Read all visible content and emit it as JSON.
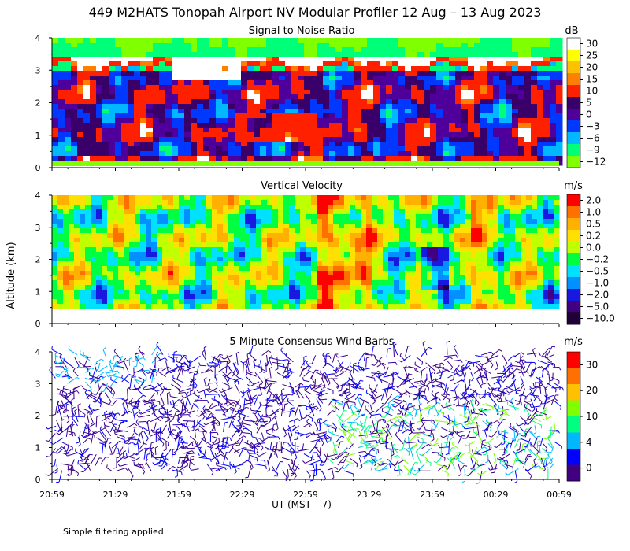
{
  "title": "449 M2HATS Tonopah Airport NV Modular Profiler 12 Aug – 13 Aug 2023",
  "ylabel": "Altitude (km)",
  "xlabel": "UT  (MST – 7)",
  "x_ticks": [
    "20:59",
    "21:29",
    "21:59",
    "22:29",
    "22:59",
    "23:29",
    "23:59",
    "00:29",
    "00:59"
  ],
  "y_ticks": [
    "0",
    "1",
    "2",
    "3",
    "4"
  ],
  "footnote": "Simple filtering applied",
  "chart_data": [
    {
      "type": "heatmap",
      "title": "Signal to Noise Ratio",
      "unit": "dB",
      "ylim": [
        0,
        4
      ],
      "colorbar": {
        "labels": [
          "30",
          "25",
          "20",
          "15",
          "10",
          "5",
          "0",
          "−3",
          "−6",
          "−9",
          "−12"
        ],
        "colors": [
          "#ffffff",
          "#ffff00",
          "#ffc000",
          "#ff8000",
          "#ff2000",
          "#380068",
          "#50009a",
          "#0038ff",
          "#00b8ff",
          "#00ff78",
          "#80ff00"
        ]
      },
      "regions": [
        {
          "time": "22:29–22:59",
          "altitude_km": "0.9–1.8",
          "approx_db": 12
        },
        {
          "time": "21:59",
          "altitude_km": "1.4",
          "approx_db": 12
        },
        {
          "time": "21:29–22:29",
          "altitude_km": "2.8–3.5",
          "approx_db": 30
        }
      ]
    },
    {
      "type": "heatmap",
      "title": "Vertical Velocity",
      "unit": "m/s",
      "ylim": [
        0,
        4
      ],
      "colorbar": {
        "labels": [
          "2.0",
          "1.0",
          "0.5",
          "0.2",
          "0.0",
          "−0.2",
          "−0.5",
          "−1.0",
          "−2.0",
          "−5.0",
          "−10.0"
        ],
        "colors": [
          "#ff0000",
          "#ff7000",
          "#ffb000",
          "#ffe000",
          "#c0ff00",
          "#00ff40",
          "#00e0ff",
          "#0090ff",
          "#1818e0",
          "#400080",
          "#200038"
        ]
      }
    },
    {
      "type": "wind_barbs",
      "title": "5 Minute Consensus Wind Barbs",
      "unit": "m/s",
      "ylim": [
        0,
        4
      ],
      "colorbar": {
        "labels": [
          "30",
          "20",
          "10",
          "4",
          "0"
        ],
        "colors": [
          "#ff0000",
          "#ff7000",
          "#ffc000",
          "#80ff00",
          "#00ff80",
          "#00b8ff",
          "#0000ff",
          "#400080"
        ]
      }
    }
  ]
}
